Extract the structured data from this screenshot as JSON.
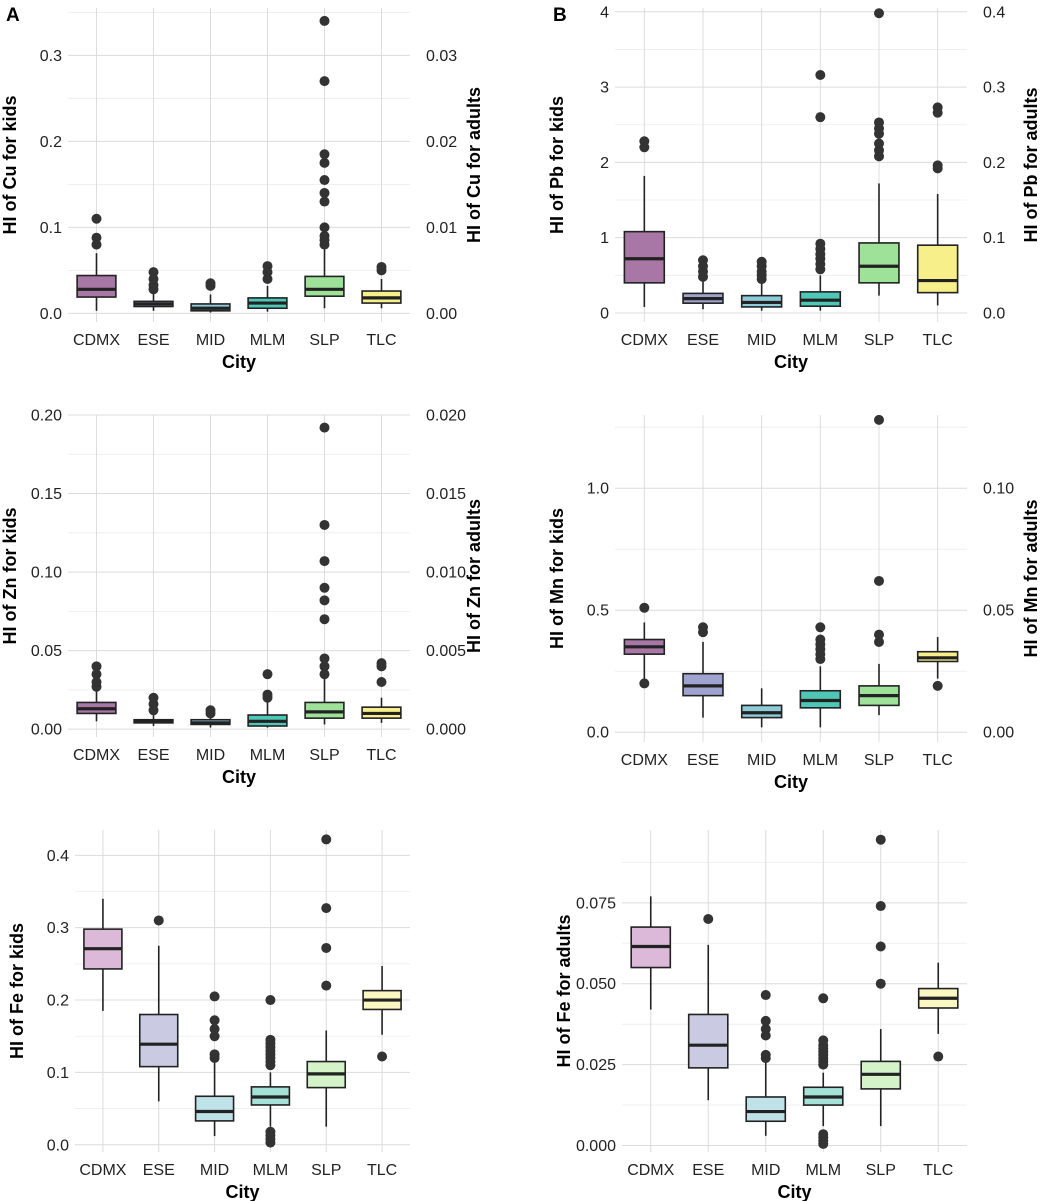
{
  "panel_labels": [
    "A",
    "B"
  ],
  "chart_data": [
    {
      "id": "cu",
      "type": "boxplot",
      "xlabel": "City",
      "ylabel": "HI of Cu for kids",
      "ylabel_right": "HI of Cu for adults",
      "categories": [
        "CDMX",
        "ESE",
        "MID",
        "MLM",
        "SLP",
        "TLC"
      ],
      "colors": [
        "#a877a6",
        "#9fa3cf",
        "#8ecbd8",
        "#4ec7b6",
        "#9ee29a",
        "#f7ef8a"
      ],
      "ylim": [
        -0.01,
        0.355
      ],
      "yticks": [
        0.0,
        0.1,
        0.2,
        0.3
      ],
      "ytick_labels": [
        "0.0",
        "0.1",
        "0.2",
        "0.3"
      ],
      "yticks_right": [
        0.0,
        0.1,
        0.2,
        0.3
      ],
      "ytick_labels_right": [
        "0.00",
        "0.01",
        "0.02",
        "0.03"
      ],
      "boxes": [
        {
          "lw": 0.003,
          "q1": 0.019,
          "med": 0.028,
          "q3": 0.044,
          "hw": 0.07,
          "out": [
            0.08,
            0.088,
            0.11
          ]
        },
        {
          "lw": 0.003,
          "q1": 0.008,
          "med": 0.011,
          "q3": 0.014,
          "hw": 0.024,
          "out": [
            0.028,
            0.033,
            0.04,
            0.048
          ]
        },
        {
          "lw": 0.001,
          "q1": 0.003,
          "med": 0.006,
          "q3": 0.011,
          "hw": 0.022,
          "out": [
            0.032,
            0.035
          ]
        },
        {
          "lw": 0.002,
          "q1": 0.006,
          "med": 0.012,
          "q3": 0.018,
          "hw": 0.032,
          "out": [
            0.04,
            0.048,
            0.055
          ]
        },
        {
          "lw": 0.006,
          "q1": 0.02,
          "med": 0.028,
          "q3": 0.043,
          "hw": 0.075,
          "out": [
            0.08,
            0.085,
            0.09,
            0.1,
            0.13,
            0.14,
            0.155,
            0.175,
            0.185,
            0.27,
            0.34
          ]
        },
        {
          "lw": 0.006,
          "q1": 0.012,
          "med": 0.018,
          "q3": 0.026,
          "hw": 0.04,
          "out": [
            0.05,
            0.054
          ]
        }
      ]
    },
    {
      "id": "pb",
      "type": "boxplot",
      "xlabel": "City",
      "ylabel": "HI of Pb for kids",
      "ylabel_right": "HI of Pb for adults",
      "categories": [
        "CDMX",
        "ESE",
        "MID",
        "MLM",
        "SLP",
        "TLC"
      ],
      "colors": [
        "#a877a6",
        "#9fa3cf",
        "#8ecbd8",
        "#4ec7b6",
        "#9ee29a",
        "#f7ef8a"
      ],
      "ylim": [
        -0.12,
        4.05
      ],
      "yticks": [
        0,
        1,
        2,
        3,
        4
      ],
      "ytick_labels": [
        "0",
        "1",
        "2",
        "3",
        "4"
      ],
      "yticks_right": [
        0,
        1,
        2,
        3,
        4
      ],
      "ytick_labels_right": [
        "0.0",
        "0.1",
        "0.2",
        "0.3",
        "0.4"
      ],
      "boxes": [
        {
          "lw": 0.08,
          "q1": 0.4,
          "med": 0.72,
          "q3": 1.08,
          "hw": 1.82,
          "out": [
            2.2,
            2.28
          ]
        },
        {
          "lw": 0.05,
          "q1": 0.13,
          "med": 0.19,
          "q3": 0.26,
          "hw": 0.42,
          "out": [
            0.48,
            0.55,
            0.62,
            0.7
          ]
        },
        {
          "lw": 0.03,
          "q1": 0.08,
          "med": 0.14,
          "q3": 0.23,
          "hw": 0.4,
          "out": [
            0.45,
            0.5,
            0.55,
            0.62,
            0.68
          ]
        },
        {
          "lw": 0.03,
          "q1": 0.09,
          "med": 0.17,
          "q3": 0.28,
          "hw": 0.5,
          "out": [
            0.58,
            0.65,
            0.72,
            0.78,
            0.85,
            0.92,
            2.6,
            3.16
          ]
        },
        {
          "lw": 0.23,
          "q1": 0.4,
          "med": 0.62,
          "q3": 0.93,
          "hw": 1.72,
          "out": [
            2.08,
            2.16,
            2.25,
            2.38,
            2.45,
            2.53,
            3.98
          ]
        },
        {
          "lw": 0.1,
          "q1": 0.27,
          "med": 0.43,
          "q3": 0.9,
          "hw": 1.58,
          "out": [
            1.92,
            1.96,
            2.66,
            2.73
          ]
        }
      ]
    },
    {
      "id": "zn",
      "type": "boxplot",
      "xlabel": "City",
      "ylabel": "HI of Zn for kids",
      "ylabel_right": "HI of Zn for adults",
      "categories": [
        "CDMX",
        "ESE",
        "MID",
        "MLM",
        "SLP",
        "TLC"
      ],
      "colors": [
        "#a877a6",
        "#9fa3cf",
        "#8ecbd8",
        "#4ec7b6",
        "#9ee29a",
        "#f7ef8a"
      ],
      "ylim": [
        -0.005,
        0.2
      ],
      "yticks": [
        0.0,
        0.05,
        0.1,
        0.15,
        0.2
      ],
      "ytick_labels": [
        "0.00",
        "0.05",
        "0.10",
        "0.15",
        "0.20"
      ],
      "yticks_right": [
        0.0,
        0.05,
        0.1,
        0.15,
        0.2
      ],
      "ytick_labels_right": [
        "0.000",
        "0.005",
        "0.010",
        "0.015",
        "0.020"
      ],
      "boxes": [
        {
          "lw": 0.005,
          "q1": 0.01,
          "med": 0.013,
          "q3": 0.017,
          "hw": 0.024,
          "out": [
            0.027,
            0.03,
            0.035,
            0.04
          ]
        },
        {
          "lw": 0.002,
          "q1": 0.004,
          "med": 0.005,
          "q3": 0.006,
          "hw": 0.009,
          "out": [
            0.012,
            0.016,
            0.02
          ]
        },
        {
          "lw": 0.001,
          "q1": 0.003,
          "med": 0.004,
          "q3": 0.006,
          "hw": 0.008,
          "out": [
            0.01,
            0.012
          ]
        },
        {
          "lw": 0.001,
          "q1": 0.002,
          "med": 0.005,
          "q3": 0.009,
          "hw": 0.017,
          "out": [
            0.02,
            0.022,
            0.035
          ]
        },
        {
          "lw": 0.003,
          "q1": 0.007,
          "med": 0.011,
          "q3": 0.017,
          "hw": 0.032,
          "out": [
            0.035,
            0.04,
            0.045,
            0.07,
            0.082,
            0.09,
            0.107,
            0.13,
            0.192
          ]
        },
        {
          "lw": 0.004,
          "q1": 0.007,
          "med": 0.01,
          "q3": 0.014,
          "hw": 0.02,
          "out": [
            0.03,
            0.04,
            0.042
          ]
        }
      ]
    },
    {
      "id": "mn",
      "type": "boxplot",
      "xlabel": "City",
      "ylabel": "HI of Mn for kids",
      "ylabel_right": "HI of Mn for adults",
      "categories": [
        "CDMX",
        "ESE",
        "MID",
        "MLM",
        "SLP",
        "TLC"
      ],
      "colors": [
        "#a877a6",
        "#9fa3cf",
        "#8ecbd8",
        "#4ec7b6",
        "#9ee29a",
        "#f7ef8a"
      ],
      "ylim": [
        -0.04,
        1.3
      ],
      "yticks": [
        0.0,
        0.5,
        1.0
      ],
      "ytick_labels": [
        "0.0",
        "0.5",
        "1.0"
      ],
      "yticks_right": [
        0.0,
        0.5,
        1.0
      ],
      "ytick_labels_right": [
        "0.00",
        "0.05",
        "0.10"
      ],
      "boxes": [
        {
          "lw": 0.22,
          "q1": 0.32,
          "med": 0.35,
          "q3": 0.38,
          "hw": 0.45,
          "out": [
            0.2,
            0.51
          ]
        },
        {
          "lw": 0.06,
          "q1": 0.15,
          "med": 0.19,
          "q3": 0.24,
          "hw": 0.37,
          "out": [
            0.41,
            0.43
          ]
        },
        {
          "lw": 0.02,
          "q1": 0.06,
          "med": 0.08,
          "q3": 0.11,
          "hw": 0.18,
          "out": []
        },
        {
          "lw": 0.02,
          "q1": 0.1,
          "med": 0.13,
          "q3": 0.17,
          "hw": 0.27,
          "out": [
            0.3,
            0.32,
            0.34,
            0.36,
            0.38,
            0.43
          ]
        },
        {
          "lw": 0.07,
          "q1": 0.11,
          "med": 0.15,
          "q3": 0.19,
          "hw": 0.28,
          "out": [
            0.37,
            0.4,
            0.62,
            1.28
          ]
        },
        {
          "lw": 0.22,
          "q1": 0.29,
          "med": 0.305,
          "q3": 0.33,
          "hw": 0.39,
          "out": [
            0.19
          ]
        }
      ]
    },
    {
      "id": "fe_kids",
      "type": "boxplot",
      "xlabel": "City",
      "ylabel": "HI of Fe for kids",
      "categories": [
        "CDMX",
        "ESE",
        "MID",
        "MLM",
        "SLP",
        "TLC"
      ],
      "colors": [
        "#dcb9d8",
        "#cacbe3",
        "#bfe2e8",
        "#a4e2d7",
        "#d4f3c9",
        "#fbf7c2"
      ],
      "ylim": [
        -0.01,
        0.435
      ],
      "yticks": [
        0.0,
        0.1,
        0.2,
        0.3,
        0.4
      ],
      "ytick_labels": [
        "0.0",
        "0.1",
        "0.2",
        "0.3",
        "0.4"
      ],
      "boxes": [
        {
          "lw": 0.185,
          "q1": 0.243,
          "med": 0.271,
          "q3": 0.298,
          "hw": 0.34,
          "out": []
        },
        {
          "lw": 0.06,
          "q1": 0.108,
          "med": 0.139,
          "q3": 0.18,
          "hw": 0.275,
          "out": [
            0.31
          ]
        },
        {
          "lw": 0.012,
          "q1": 0.033,
          "med": 0.046,
          "q3": 0.067,
          "hw": 0.115,
          "out": [
            0.12,
            0.125,
            0.15,
            0.16,
            0.172,
            0.205
          ]
        },
        {
          "lw": 0.025,
          "q1": 0.055,
          "med": 0.066,
          "q3": 0.08,
          "hw": 0.1,
          "out": [
            0.003,
            0.008,
            0.013,
            0.018,
            0.11,
            0.115,
            0.12,
            0.125,
            0.13,
            0.135,
            0.14,
            0.145,
            0.2
          ]
        },
        {
          "lw": 0.025,
          "q1": 0.079,
          "med": 0.098,
          "q3": 0.115,
          "hw": 0.158,
          "out": [
            0.22,
            0.272,
            0.327,
            0.422
          ]
        },
        {
          "lw": 0.152,
          "q1": 0.187,
          "med": 0.2,
          "q3": 0.213,
          "hw": 0.247,
          "out": [
            0.122
          ]
        }
      ]
    },
    {
      "id": "fe_adults",
      "type": "boxplot",
      "xlabel": "City",
      "ylabel": "HI of Fe for adults",
      "categories": [
        "CDMX",
        "ESE",
        "MID",
        "MLM",
        "SLP",
        "TLC"
      ],
      "colors": [
        "#dcb9d8",
        "#cacbe3",
        "#bfe2e8",
        "#a4e2d7",
        "#d4f3c9",
        "#fbf7c2"
      ],
      "ylim": [
        -0.002,
        0.0975
      ],
      "yticks": [
        0.0,
        0.025,
        0.05,
        0.075
      ],
      "ytick_labels": [
        "0.000",
        "0.025",
        "0.050",
        "0.075"
      ],
      "boxes": [
        {
          "lw": 0.042,
          "q1": 0.055,
          "med": 0.0615,
          "q3": 0.0675,
          "hw": 0.077,
          "out": []
        },
        {
          "lw": 0.014,
          "q1": 0.024,
          "med": 0.031,
          "q3": 0.0405,
          "hw": 0.062,
          "out": [
            0.07
          ]
        },
        {
          "lw": 0.003,
          "q1": 0.0075,
          "med": 0.0105,
          "q3": 0.015,
          "hw": 0.026,
          "out": [
            0.027,
            0.028,
            0.034,
            0.036,
            0.0385,
            0.0465
          ]
        },
        {
          "lw": 0.006,
          "q1": 0.0125,
          "med": 0.015,
          "q3": 0.018,
          "hw": 0.0225,
          "out": [
            0.0005,
            0.0015,
            0.0025,
            0.0035,
            0.025,
            0.026,
            0.027,
            0.028,
            0.029,
            0.03,
            0.031,
            0.0325,
            0.0455
          ]
        },
        {
          "lw": 0.006,
          "q1": 0.0175,
          "med": 0.022,
          "q3": 0.026,
          "hw": 0.036,
          "out": [
            0.05,
            0.0615,
            0.074,
            0.0945
          ]
        },
        {
          "lw": 0.0345,
          "q1": 0.0425,
          "med": 0.0455,
          "q3": 0.0485,
          "hw": 0.0565,
          "out": [
            0.0275
          ]
        }
      ]
    }
  ]
}
